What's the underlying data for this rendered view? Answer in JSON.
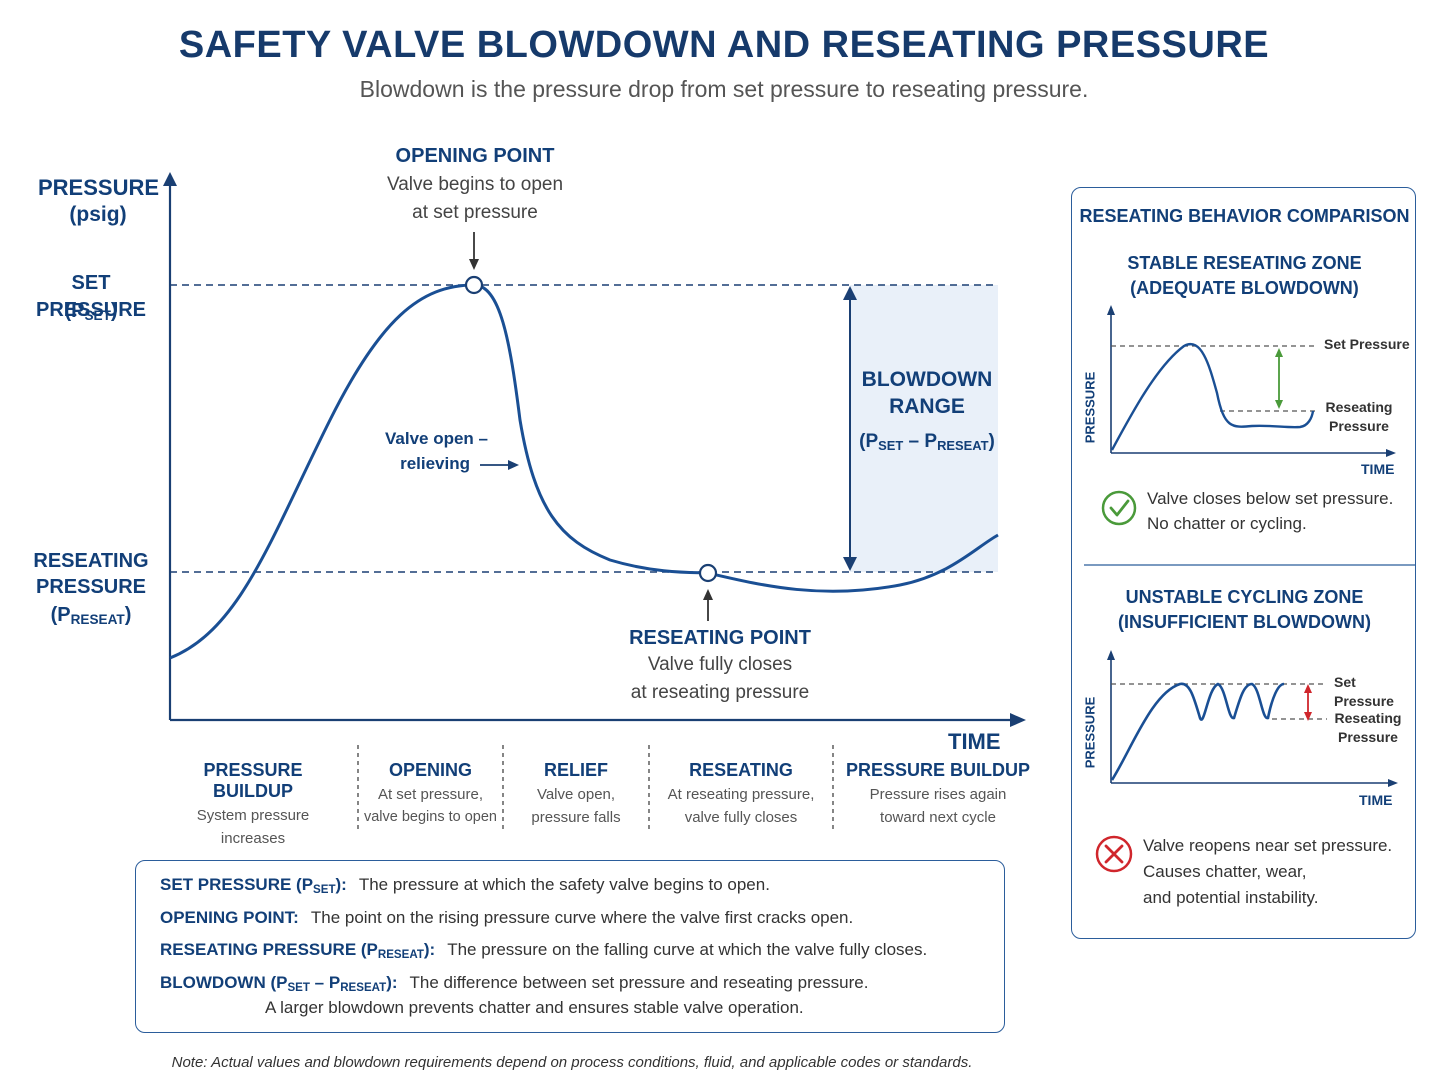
{
  "title": "SAFETY VALVE BLOWDOWN AND RESEATING PRESSURE",
  "subtitle": "Blowdown is the pressure drop from set pressure to reseating pressure.",
  "main_chart": {
    "y_axis_title": "PRESSURE",
    "y_axis_unit": "(psig)",
    "x_axis_title": "TIME",
    "set_pressure_label": "SET PRESSURE",
    "set_pressure_symbol_base": "(P",
    "set_pressure_symbol_sub": "SET",
    "set_pressure_symbol_end": ")",
    "reseat_label_line1": "RESEATING",
    "reseat_label_line2": "PRESSURE",
    "reseat_symbol_base": "(P",
    "reseat_symbol_sub": "RESEAT",
    "reseat_symbol_end": ")",
    "opening_point_title": "OPENING POINT",
    "opening_point_line1": "Valve begins to open",
    "opening_point_line2": "at set pressure",
    "valve_open_line1": "Valve open –",
    "valve_open_line2": "relieving",
    "blowdown_line1": "BLOWDOWN",
    "blowdown_line2": "RANGE",
    "blowdown_formula_a": "(P",
    "blowdown_formula_sub1": "SET",
    "blowdown_formula_b": " – P",
    "blowdown_formula_sub2": "RESEAT",
    "blowdown_formula_c": ")",
    "reseating_point_title": "RESEATING POINT",
    "reseating_point_line1": "Valve fully closes",
    "reseating_point_line2": "at reseating pressure",
    "colors": {
      "curve": "#1a4f94",
      "axis": "#1a3f73",
      "blowdown_fill": "#e9f0f9"
    }
  },
  "phases": [
    {
      "title": "PRESSURE BUILDUP",
      "line1": "System pressure",
      "line2": "increases"
    },
    {
      "title": "OPENING",
      "line1": "At set pressure,",
      "line2": "valve begins to open"
    },
    {
      "title": "RELIEF",
      "line1": "Valve open,",
      "line2": "pressure falls"
    },
    {
      "title": "RESEATING",
      "line1": "At reseating pressure,",
      "line2": "valve fully closes"
    },
    {
      "title": "PRESSURE BUILDUP",
      "line1": "Pressure rises again",
      "line2": "toward next cycle"
    }
  ],
  "definitions": {
    "set": {
      "key_a": "SET PRESSURE (P",
      "key_sub": "SET",
      "key_b": "):",
      "text": "The pressure at which the safety valve begins to open."
    },
    "opening": {
      "key": "OPENING POINT:",
      "text": "The point on the rising pressure curve where the valve first cracks open."
    },
    "reseat": {
      "key_a": "RESEATING PRESSURE (P",
      "key_sub": "RESEAT",
      "key_b": "):",
      "text": "The pressure on the falling curve at which the valve fully closes."
    },
    "blowdown": {
      "key_a": "BLOWDOWN (P",
      "key_sub1": "SET",
      "key_b": " – P",
      "key_sub2": "RESEAT",
      "key_c": "):",
      "text": "The difference between set pressure and reseating pressure.",
      "text2": "A larger blowdown prevents chatter and ensures stable valve operation."
    }
  },
  "side_panel": {
    "title": "RESEATING BEHAVIOR COMPARISON",
    "stable": {
      "title_line1": "STABLE RESEATING ZONE",
      "title_line2": "(ADEQUATE BLOWDOWN)",
      "y_label": "PRESSURE",
      "x_label": "TIME",
      "set_label": "Set Pressure",
      "reseat_label_line1": "Reseating",
      "reseat_label_line2": "Pressure",
      "note_line1": "Valve closes below set pressure.",
      "note_line2": "No chatter or cycling.",
      "icon": "check-circle-icon",
      "color": "#4a9a3a"
    },
    "unstable": {
      "title_line1": "UNSTABLE CYCLING ZONE",
      "title_line2": "(INSUFFICIENT BLOWDOWN)",
      "y_label": "PRESSURE",
      "x_label": "TIME",
      "set_label": "Set Pressure",
      "reseat_label_line1": "Reseating",
      "reseat_label_line2": "Pressure",
      "note_line1": "Valve reopens near set pressure.",
      "note_line2": "Causes chatter, wear,",
      "note_line3": "and potential instability.",
      "icon": "x-circle-icon",
      "color": "#d0262c"
    }
  },
  "note": "Note: Actual values and blowdown requirements depend on process conditions, fluid, and applicable codes or standards."
}
